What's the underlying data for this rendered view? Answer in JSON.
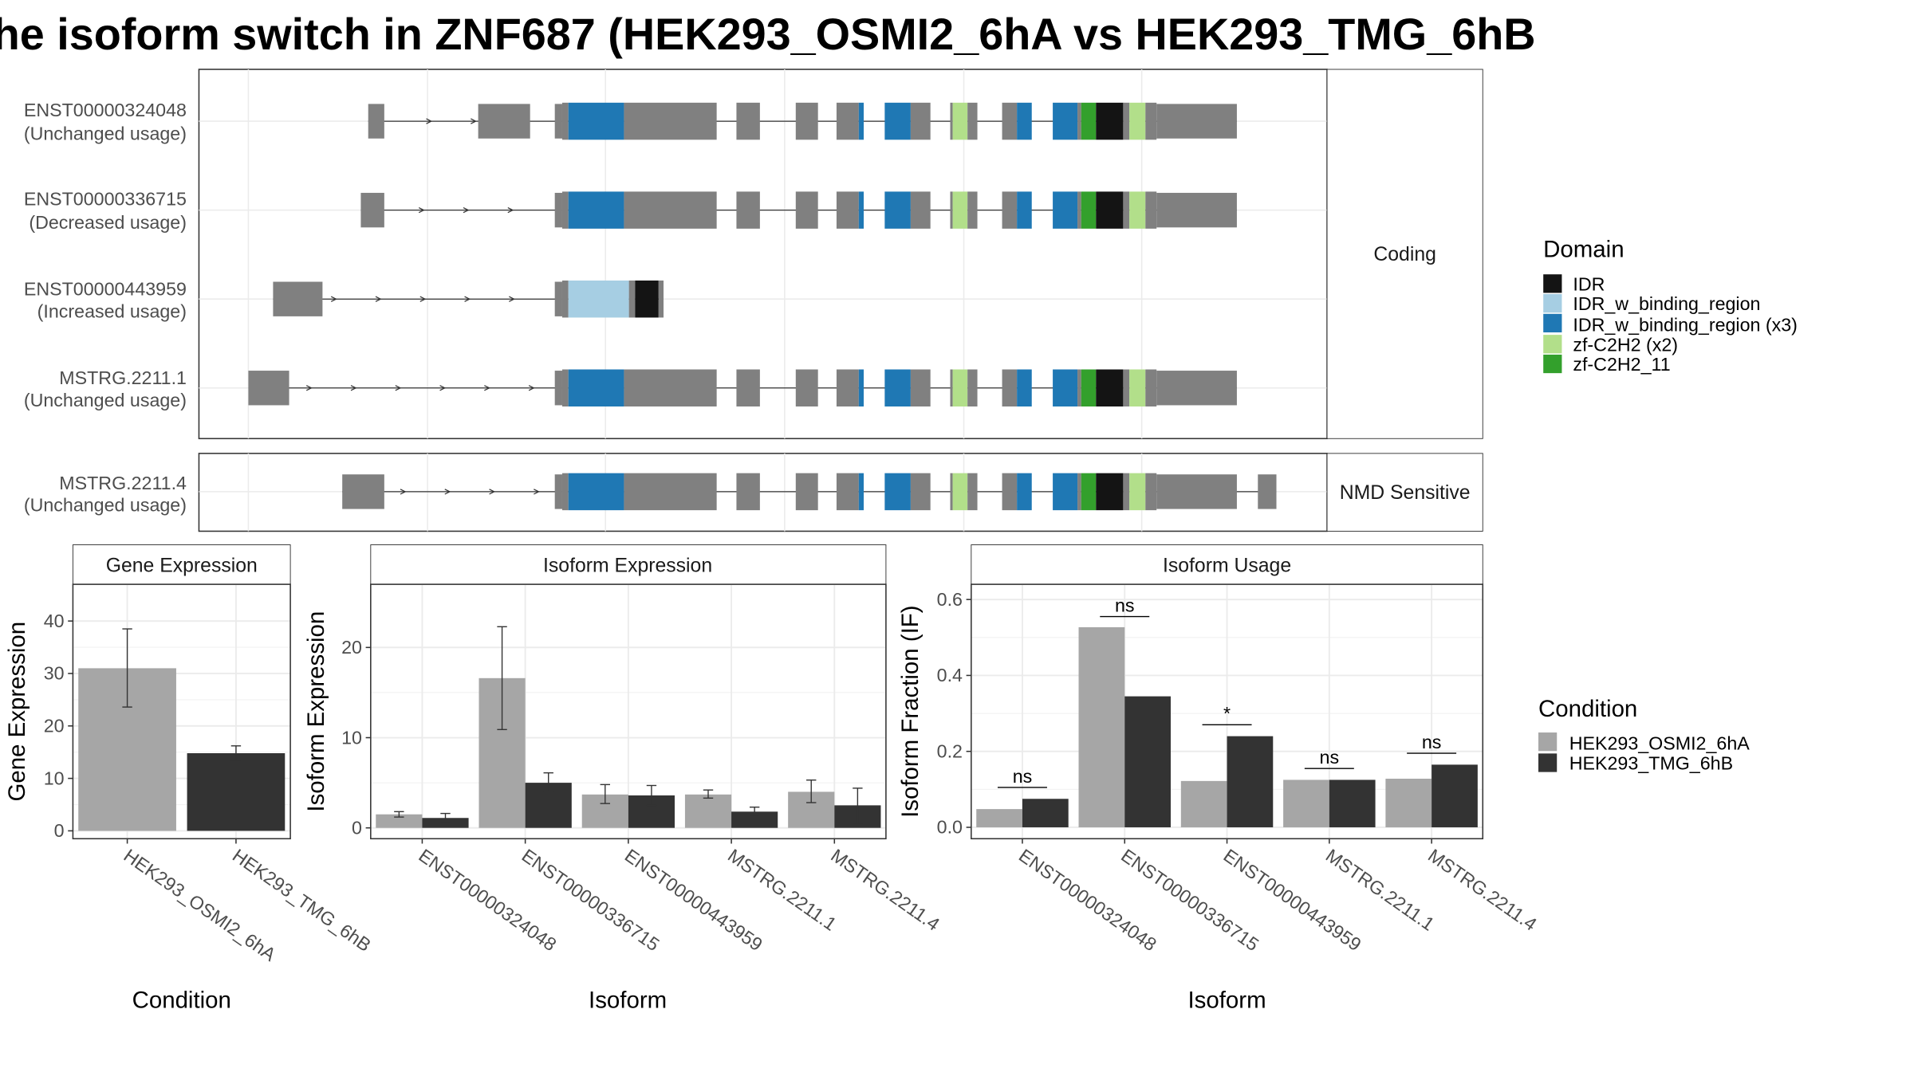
{
  "title": "he isoform switch in ZNF687 (HEK293_OSMI2_6hA vs HEK293_TMG_6hB",
  "colors": {
    "exon": "#808080",
    "idr": "#141414",
    "idr_w_binding_region": "#a6cee3",
    "idr_w_binding_region_x3": "#1f78b4",
    "zf_c2h2_x2": "#b2df8a",
    "zf_c2h2_11": "#33a02c",
    "condition_a": "#a6a6a6",
    "condition_b": "#333333"
  },
  "structure": {
    "strip_coding": "Coding",
    "strip_nmd": "NMD Sensitive",
    "transcripts": [
      {
        "id": "ENST00000324048",
        "usage": "(Unchanged usage)",
        "group": "coding"
      },
      {
        "id": "ENST00000336715",
        "usage": "(Decreased usage)",
        "group": "coding"
      },
      {
        "id": "ENST00000443959",
        "usage": "(Increased usage)",
        "group": "coding"
      },
      {
        "id": "MSTRG.2211.1",
        "usage": "(Unchanged usage)",
        "group": "coding"
      },
      {
        "id": "MSTRG.2211.4",
        "usage": "(Unchanged usage)",
        "group": "nmd"
      }
    ]
  },
  "domain_legend": {
    "title": "Domain",
    "items": [
      {
        "label": "IDR",
        "color": "#141414"
      },
      {
        "label": "IDR_w_binding_region",
        "color": "#a6cee3"
      },
      {
        "label": "IDR_w_binding_region (x3)",
        "color": "#1f78b4"
      },
      {
        "label": "zf-C2H2 (x2)",
        "color": "#b2df8a"
      },
      {
        "label": "zf-C2H2_11",
        "color": "#33a02c"
      }
    ]
  },
  "condition_legend": {
    "title": "Condition",
    "items": [
      {
        "label": "HEK293_OSMI2_6hA",
        "color": "#a6a6a6"
      },
      {
        "label": "HEK293_TMG_6hB",
        "color": "#333333"
      }
    ]
  },
  "chart_data": [
    {
      "type": "bar",
      "title": "Gene Expression",
      "xlabel": "Condition",
      "ylabel": "Gene Expression",
      "categories": [
        "HEK293_OSMI2_6hA",
        "HEK293_TMG_6hB"
      ],
      "values": [
        31,
        14.8
      ],
      "error_low": [
        23.6,
        13.4
      ],
      "error_high": [
        38.5,
        16.2
      ],
      "ylim": [
        -1.5,
        47
      ],
      "yticks": [
        0,
        10,
        20,
        30,
        40
      ]
    },
    {
      "type": "bar",
      "title": "Isoform Expression",
      "xlabel": "Isoform",
      "ylabel": "Isoform Expression",
      "categories": [
        "ENST00000324048",
        "ENST00000336715",
        "ENST00000443959",
        "MSTRG.2211.1",
        "MSTRG.2211.4"
      ],
      "series": [
        {
          "name": "HEK293_OSMI2_6hA",
          "values": [
            1.5,
            16.6,
            3.7,
            3.7,
            4.0
          ],
          "error_low": [
            1.2,
            10.9,
            2.7,
            3.3,
            2.8
          ],
          "error_high": [
            1.8,
            22.3,
            4.8,
            4.2,
            5.3
          ]
        },
        {
          "name": "HEK293_TMG_6hB",
          "values": [
            1.1,
            5.0,
            3.6,
            1.8,
            2.5
          ],
          "error_low": [
            0.6,
            4.0,
            2.5,
            1.4,
            0.5
          ],
          "error_high": [
            1.6,
            6.1,
            4.7,
            2.3,
            4.4
          ]
        }
      ],
      "ylim": [
        -1.2,
        27
      ],
      "yticks": [
        0,
        10,
        20
      ]
    },
    {
      "type": "bar",
      "title": "Isoform Usage",
      "xlabel": "Isoform",
      "ylabel": "Isoform Fraction (IF)",
      "categories": [
        "ENST00000324048",
        "ENST00000336715",
        "ENST00000443959",
        "MSTRG.2211.1",
        "MSTRG.2211.4"
      ],
      "series": [
        {
          "name": "HEK293_OSMI2_6hA",
          "values": [
            0.048,
            0.527,
            0.122,
            0.125,
            0.128
          ]
        },
        {
          "name": "HEK293_TMG_6hB",
          "values": [
            0.075,
            0.345,
            0.24,
            0.125,
            0.165
          ]
        }
      ],
      "significance": [
        "ns",
        "ns",
        "*",
        "ns",
        "ns"
      ],
      "sig_line_y": [
        0.105,
        0.555,
        0.27,
        0.155,
        0.195
      ],
      "ylim": [
        -0.03,
        0.64
      ],
      "yticks": [
        0.0,
        0.2,
        0.4,
        0.6
      ],
      "ytick_labels": [
        "0.0",
        "0.2",
        "0.4",
        "0.6"
      ]
    }
  ]
}
